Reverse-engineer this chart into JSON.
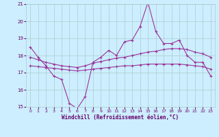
{
  "xlabel": "Windchill (Refroidissement éolien,°C)",
  "bg_color": "#cceeff",
  "line_color": "#993399",
  "hours": [
    0,
    1,
    2,
    3,
    4,
    5,
    6,
    7,
    8,
    9,
    10,
    11,
    12,
    13,
    14,
    15,
    16,
    17,
    18,
    19,
    20,
    21,
    22,
    23
  ],
  "line1": [
    18.5,
    17.9,
    17.4,
    16.8,
    16.6,
    15.2,
    14.9,
    15.6,
    17.6,
    17.9,
    18.3,
    18.0,
    18.8,
    18.9,
    19.7,
    21.1,
    19.4,
    18.7,
    18.7,
    18.9,
    18.0,
    17.6,
    17.6,
    16.8
  ],
  "line2": [
    17.9,
    17.75,
    17.6,
    17.5,
    17.4,
    17.35,
    17.3,
    17.4,
    17.55,
    17.65,
    17.75,
    17.85,
    17.9,
    18.0,
    18.1,
    18.2,
    18.25,
    18.35,
    18.4,
    18.4,
    18.35,
    18.2,
    18.1,
    17.9
  ],
  "line3": [
    17.4,
    17.35,
    17.3,
    17.25,
    17.2,
    17.15,
    17.1,
    17.15,
    17.2,
    17.25,
    17.3,
    17.35,
    17.4,
    17.4,
    17.45,
    17.5,
    17.5,
    17.5,
    17.5,
    17.5,
    17.45,
    17.4,
    17.35,
    17.2
  ],
  "ylim": [
    15,
    21
  ],
  "yticks": [
    15,
    16,
    17,
    18,
    19,
    20,
    21
  ],
  "xticks": [
    0,
    1,
    2,
    3,
    4,
    5,
    6,
    7,
    8,
    9,
    10,
    11,
    12,
    13,
    14,
    15,
    16,
    17,
    18,
    19,
    20,
    21,
    22,
    23
  ],
  "grid_color": "#aacccc",
  "tick_color": "#660066",
  "label_color": "#660066"
}
